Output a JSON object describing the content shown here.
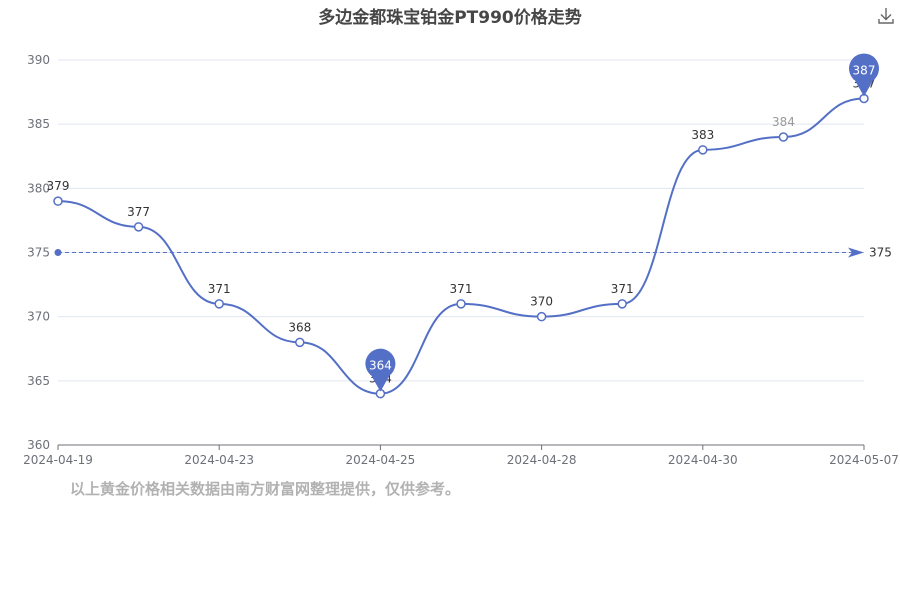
{
  "title": "多边金都珠宝铂金PT990价格走势",
  "download_icon": "download-icon",
  "footnote": "以上黄金价格相关数据由南方财富网整理提供，仅供参考。",
  "colors": {
    "line": "#5470c6",
    "text": "#333333",
    "axis": "#6e7079",
    "grid": "#e0e6f1"
  },
  "chart_data": {
    "type": "line",
    "smooth": true,
    "x_ticks": [
      "2024-04-19",
      "2024-04-23",
      "2024-04-25",
      "2024-04-28",
      "2024-04-30",
      "2024-05-07"
    ],
    "points": [
      {
        "x": "2024-04-19",
        "y": 379
      },
      {
        "x": "2024-04-22",
        "y": 377
      },
      {
        "x": "2024-04-23",
        "y": 371
      },
      {
        "x": "2024-04-24",
        "y": 368
      },
      {
        "x": "2024-04-25",
        "y": 364
      },
      {
        "x": "2024-04-26",
        "y": 371
      },
      {
        "x": "2024-04-28",
        "y": 370
      },
      {
        "x": "2024-04-29",
        "y": 371
      },
      {
        "x": "2024-04-30",
        "y": 383
      },
      {
        "x": "2024-05-06",
        "y": 384
      },
      {
        "x": "2024-05-07",
        "y": 387
      }
    ],
    "ylim": [
      360,
      390
    ],
    "y_ticks": [
      360,
      365,
      370,
      375,
      380,
      385,
      390
    ],
    "markers": {
      "max": 387,
      "min": 364
    },
    "average": 375,
    "grid": true
  }
}
